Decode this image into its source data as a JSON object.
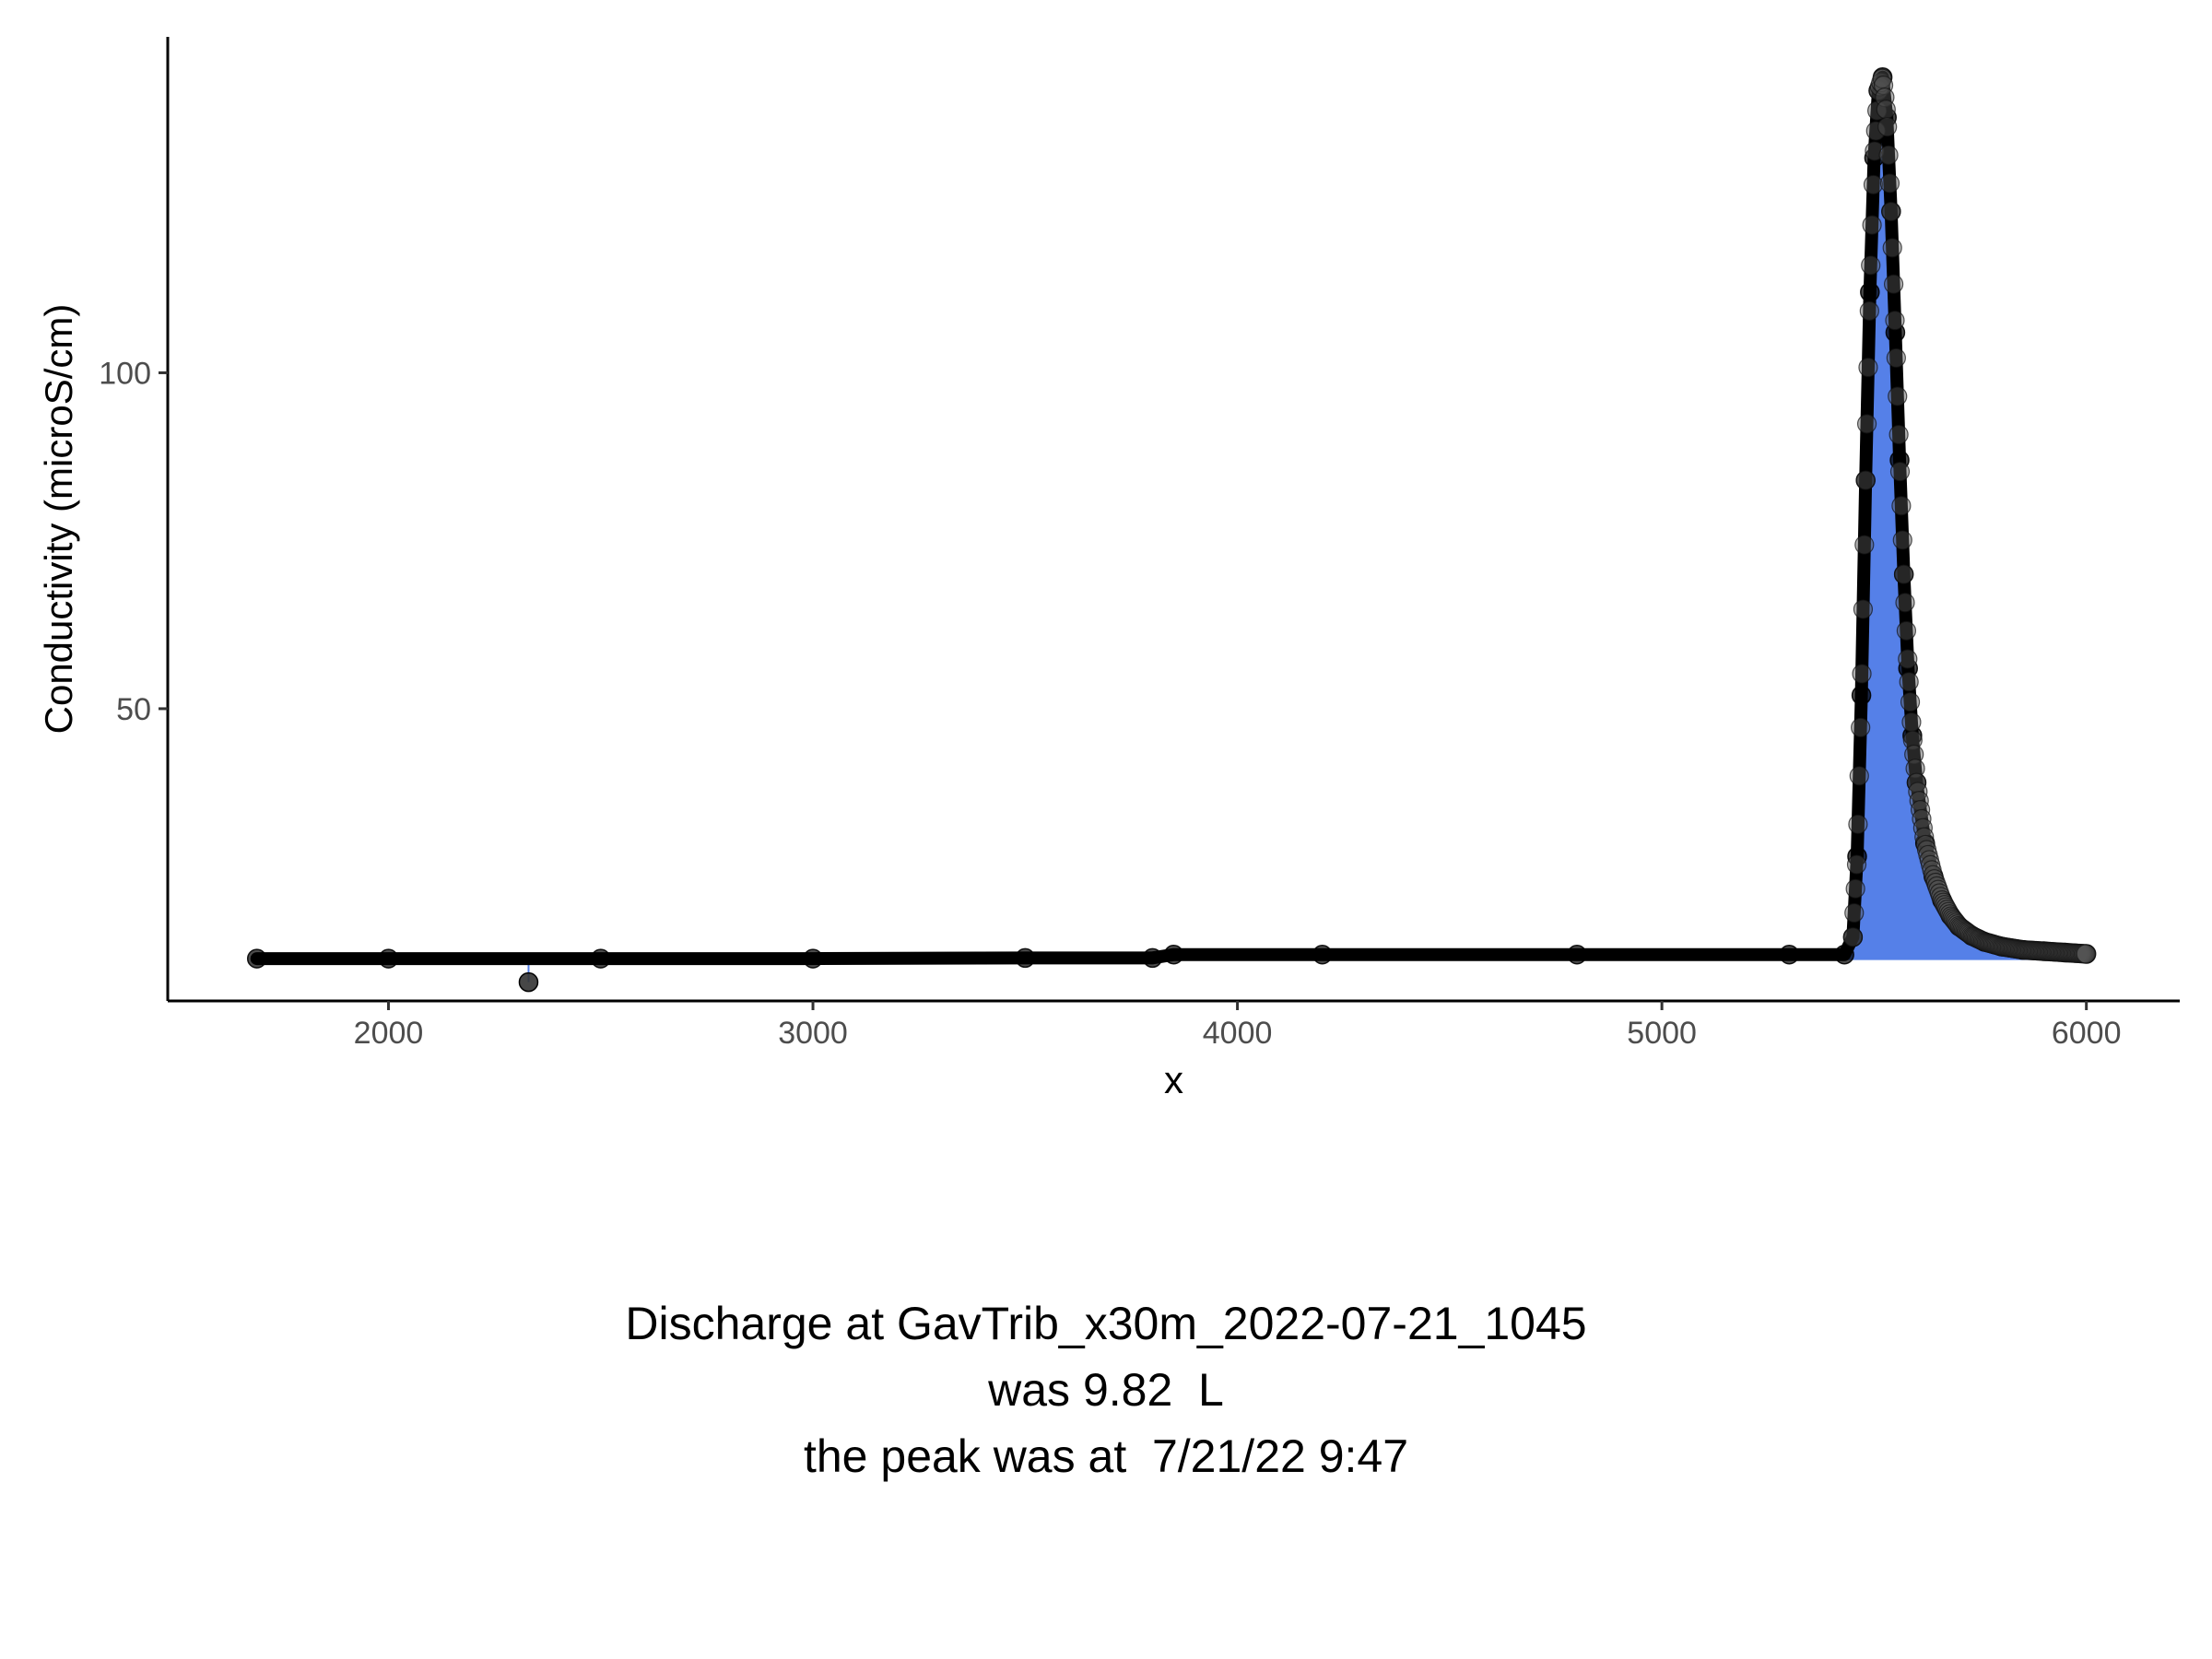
{
  "chart_data": {
    "type": "scatter",
    "xlabel": "x",
    "ylabel": "Conductivity (microS/cm)",
    "xlim": [
      1480,
      6220
    ],
    "ylim": [
      6.5,
      150
    ],
    "x_ticks": [
      2000,
      3000,
      4000,
      5000,
      6000
    ],
    "y_ticks": [
      50,
      100
    ],
    "grid": false,
    "fill_color": "#5580E8",
    "point_color": "#000000",
    "baseline": 12.8,
    "outlier": {
      "x": 2330,
      "y": 9.3
    },
    "series": [
      {
        "x": [
          1690,
          2000,
          2500,
          3000,
          3500,
          3800,
          3850,
          4200,
          4800,
          5300,
          5430,
          5450,
          5460,
          5470,
          5480,
          5490,
          5500,
          5510,
          5520,
          5530,
          5540,
          5550,
          5560,
          5570,
          5580,
          5590,
          5600,
          5620,
          5640,
          5660,
          5680,
          5700,
          5730,
          5760,
          5800,
          5850,
          5900,
          5950,
          6000
        ],
        "y": [
          12.8,
          12.8,
          12.8,
          12.8,
          12.9,
          12.9,
          13.4,
          13.4,
          13.4,
          13.4,
          13.4,
          16,
          28,
          52,
          84,
          112,
          132,
          142,
          144,
          138,
          124,
          106,
          87,
          70,
          56,
          46,
          39,
          30,
          25,
          21.5,
          19.2,
          17.6,
          16.2,
          15.3,
          14.6,
          14.1,
          13.9,
          13.7,
          13.5
        ]
      }
    ],
    "annotations": [
      "Discharge at GavTrib_x30m_2022-07-21_1045",
      "was 9.82  L",
      "the peak was at  7/21/22 9:47"
    ]
  }
}
